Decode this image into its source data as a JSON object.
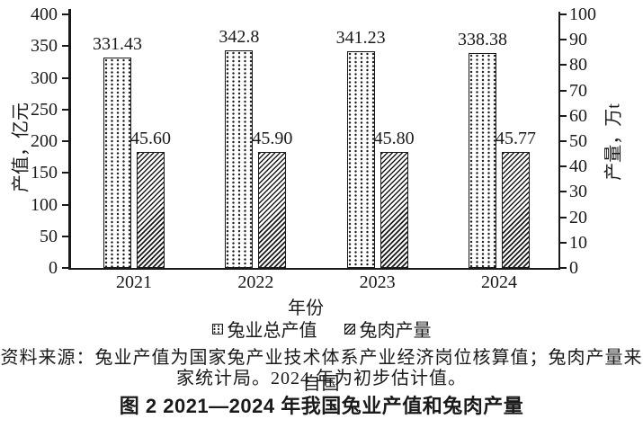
{
  "chart_data": {
    "type": "bar",
    "title": "图 2  2021—2024 年我国兔业产值和兔肉产量",
    "categories": [
      "2021",
      "2022",
      "2023",
      "2024"
    ],
    "xlabel": "年份",
    "series": [
      {
        "name": "兔业总产值",
        "key": "output-value",
        "axis": "left",
        "pattern": "dots",
        "values": [
          331.43,
          342.8,
          341.23,
          338.38
        ],
        "value_labels": [
          "331.43",
          "342.8",
          "341.23",
          "338.38"
        ]
      },
      {
        "name": "兔肉产量",
        "key": "meat-production",
        "axis": "right",
        "pattern": "diagonal-hatch",
        "values": [
          45.6,
          45.9,
          45.8,
          45.77
        ],
        "value_labels": [
          "45.60",
          "45.90",
          "45.80",
          "45.77"
        ]
      }
    ],
    "left_axis": {
      "label": "产值，亿元",
      "min": 0,
      "max": 400,
      "tick_step": 50,
      "ticks": [
        0,
        50,
        100,
        150,
        200,
        250,
        300,
        350,
        400
      ]
    },
    "right_axis": {
      "label": "产量，万t",
      "min": 0,
      "max": 100,
      "tick_step": 10,
      "ticks": [
        0,
        10,
        20,
        30,
        40,
        50,
        60,
        70,
        80,
        90,
        100
      ]
    },
    "legend_position": "bottom",
    "grid": false,
    "bar_fill": "#ffffff",
    "ink_color": "#1a1a1a"
  },
  "figure": {
    "caption_line1": "资料来源：兔业产值为国家兔产业技术体系产业经济岗位核算值；兔肉产量来自国",
    "caption_line2": "家统计局。2024 年为初步估计值。"
  }
}
